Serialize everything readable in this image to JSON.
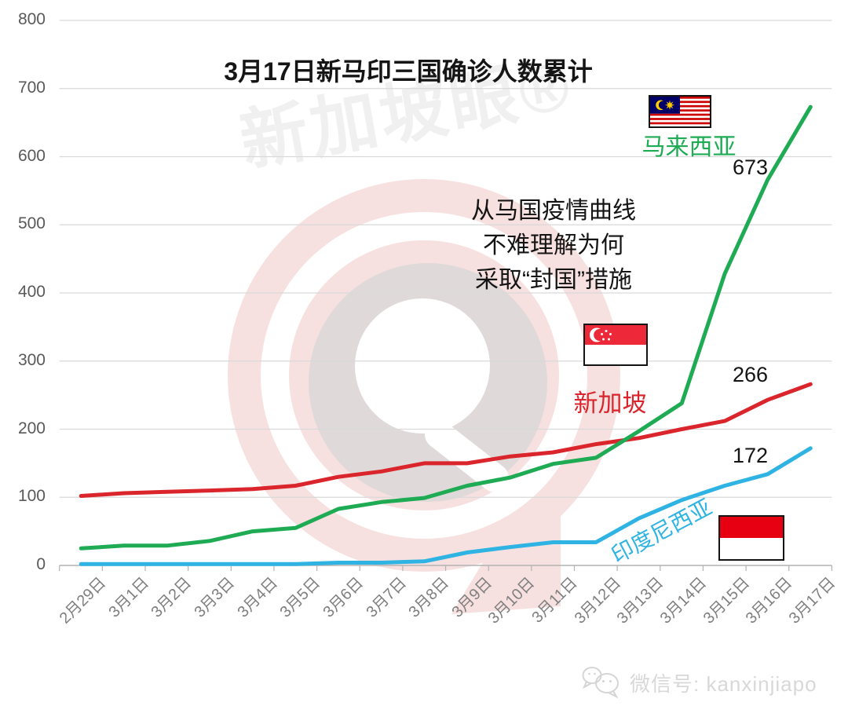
{
  "chart_data": {
    "type": "line",
    "title": "3月17日新马印三国确诊人数累计",
    "categories": [
      "2月29日",
      "3月1日",
      "3月2日",
      "3月3日",
      "3月4日",
      "3月5日",
      "3月6日",
      "3月7日",
      "3月8日",
      "3月9日",
      "3月10日",
      "3月11日",
      "3月12日",
      "3月13日",
      "3月14日",
      "3月15日",
      "3月16日",
      "3月17日"
    ],
    "series": [
      {
        "name": "马来西亚",
        "color": "#1eab54",
        "values": [
          25,
          29,
          29,
          36,
          50,
          55,
          83,
          93,
          99,
          117,
          129,
          149,
          158,
          197,
          238,
          428,
          566,
          673
        ],
        "end_label": "673"
      },
      {
        "name": "新加坡",
        "color": "#d9252b",
        "values": [
          102,
          106,
          108,
          110,
          112,
          117,
          130,
          138,
          150,
          150,
          160,
          166,
          178,
          187,
          200,
          212,
          243,
          266
        ],
        "end_label": "266"
      },
      {
        "name": "印度尼西亚",
        "color": "#2fb3e3",
        "values": [
          2,
          2,
          2,
          2,
          2,
          2,
          4,
          4,
          6,
          19,
          27,
          34,
          34,
          69,
          96,
          117,
          134,
          172
        ],
        "end_label": "172"
      }
    ],
    "ylim": [
      0,
      800
    ],
    "y_ticks": [
      0,
      100,
      200,
      300,
      400,
      500,
      600,
      700,
      800
    ],
    "grid": true,
    "legend_position": "inline-flags-next-to-lines"
  },
  "annotation": {
    "lines": [
      "从马国疫情曲线",
      "不难理解为何",
      "采取“封国”措施"
    ]
  },
  "watermark": {
    "text": "新加坡眼®"
  },
  "footer": {
    "wechat_label": "微信号: kanxinjiapo"
  },
  "colors": {
    "grid": "#d9d9d9",
    "axis": "#b3b3b3",
    "y_label": "#595959",
    "x_label": "#7f7f7f",
    "watermark_pink": "#f7e1e0",
    "watermark_gray": "#d7d7d7"
  }
}
